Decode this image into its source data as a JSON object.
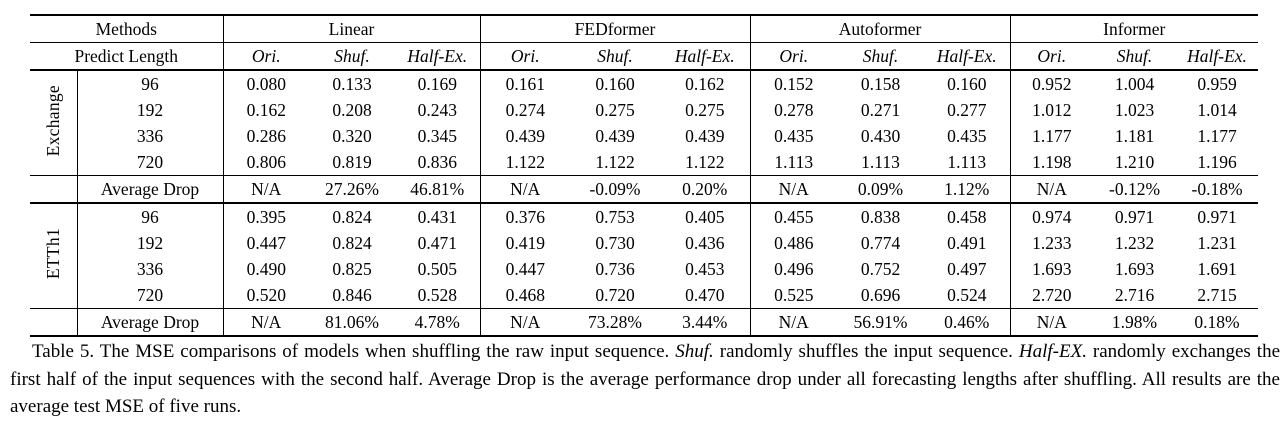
{
  "table": {
    "header": {
      "methods_label": "Methods",
      "predict_length_label": "Predict Length",
      "groups": [
        {
          "name": "Linear",
          "subcols": [
            "Ori.",
            "Shuf.",
            "Half-Ex."
          ]
        },
        {
          "name": "FEDformer",
          "subcols": [
            "Ori.",
            "Shuf.",
            "Half-Ex."
          ]
        },
        {
          "name": "Autoformer",
          "subcols": [
            "Ori.",
            "Shuf.",
            "Half-Ex."
          ]
        },
        {
          "name": "Informer",
          "subcols": [
            "Ori.",
            "Shuf.",
            "Half-Ex."
          ]
        }
      ]
    },
    "blocks": [
      {
        "dataset": "Exchange",
        "rows": [
          {
            "length": "96",
            "values": [
              "0.080",
              "0.133",
              "0.169",
              "0.161",
              "0.160",
              "0.162",
              "0.152",
              "0.158",
              "0.160",
              "0.952",
              "1.004",
              "0.959"
            ]
          },
          {
            "length": "192",
            "values": [
              "0.162",
              "0.208",
              "0.243",
              "0.274",
              "0.275",
              "0.275",
              "0.278",
              "0.271",
              "0.277",
              "1.012",
              "1.023",
              "1.014"
            ]
          },
          {
            "length": "336",
            "values": [
              "0.286",
              "0.320",
              "0.345",
              "0.439",
              "0.439",
              "0.439",
              "0.435",
              "0.430",
              "0.435",
              "1.177",
              "1.181",
              "1.177"
            ]
          },
          {
            "length": "720",
            "values": [
              "0.806",
              "0.819",
              "0.836",
              "1.122",
              "1.122",
              "1.122",
              "1.113",
              "1.113",
              "1.113",
              "1.198",
              "1.210",
              "1.196"
            ]
          }
        ],
        "average_drop": {
          "label": "Average Drop",
          "values": [
            "N/A",
            "27.26%",
            "46.81%",
            "N/A",
            "-0.09%",
            "0.20%",
            "N/A",
            "0.09%",
            "1.12%",
            "N/A",
            "-0.12%",
            "-0.18%"
          ]
        }
      },
      {
        "dataset": "ETTh1",
        "rows": [
          {
            "length": "96",
            "values": [
              "0.395",
              "0.824",
              "0.431",
              "0.376",
              "0.753",
              "0.405",
              "0.455",
              "0.838",
              "0.458",
              "0.974",
              "0.971",
              "0.971"
            ]
          },
          {
            "length": "192",
            "values": [
              "0.447",
              "0.824",
              "0.471",
              "0.419",
              "0.730",
              "0.436",
              "0.486",
              "0.774",
              "0.491",
              "1.233",
              "1.232",
              "1.231"
            ]
          },
          {
            "length": "336",
            "values": [
              "0.490",
              "0.825",
              "0.505",
              "0.447",
              "0.736",
              "0.453",
              "0.496",
              "0.752",
              "0.497",
              "1.693",
              "1.693",
              "1.691"
            ]
          },
          {
            "length": "720",
            "values": [
              "0.520",
              "0.846",
              "0.528",
              "0.468",
              "0.720",
              "0.470",
              "0.525",
              "0.696",
              "0.524",
              "2.720",
              "2.716",
              "2.715"
            ]
          }
        ],
        "average_drop": {
          "label": "Average Drop",
          "values": [
            "N/A",
            "81.06%",
            "4.78%",
            "N/A",
            "73.28%",
            "3.44%",
            "N/A",
            "56.91%",
            "0.46%",
            "N/A",
            "1.98%",
            "0.18%"
          ]
        }
      }
    ]
  },
  "caption": {
    "parts": [
      {
        "text": "Table 5. The MSE comparisons of models when shuffling the raw input sequence. ",
        "italic": false
      },
      {
        "text": "Shuf.",
        "italic": true
      },
      {
        "text": " randomly shuffles the input sequence. ",
        "italic": false
      },
      {
        "text": "Half-EX.",
        "italic": true
      },
      {
        "text": " randomly exchanges the first half of the input sequences with the second half. Average Drop is the average performance drop under all forecasting lengths after shuffling. All results are the average test MSE of five runs.",
        "italic": false
      }
    ]
  }
}
